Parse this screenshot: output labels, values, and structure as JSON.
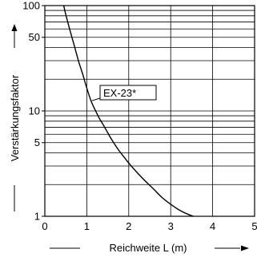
{
  "chart_data": {
    "type": "line",
    "xlabel": "Reichweite L (m)",
    "ylabel": "Verstärkungsfaktor",
    "xlim": [
      0,
      5
    ],
    "ylim": [
      1,
      100
    ],
    "yscale": "log",
    "grid": true,
    "x_ticks": [
      0,
      1,
      2,
      3,
      4,
      5
    ],
    "x_tick_labels": [
      "0",
      "1",
      "2",
      "3",
      "4",
      "5"
    ],
    "y_ticks": [
      1,
      5,
      10,
      50,
      100
    ],
    "y_tick_labels": [
      "1",
      "5",
      "10",
      "50",
      "100"
    ],
    "y_gridlines": [
      1,
      2,
      3,
      4,
      5,
      6,
      7,
      8,
      9,
      10,
      20,
      30,
      40,
      50,
      60,
      70,
      80,
      90,
      100
    ],
    "series": [
      {
        "name": "EX-23*",
        "x": [
          0.45,
          0.5,
          0.6,
          0.7,
          0.8,
          0.9,
          1.0,
          1.1,
          1.2,
          1.3,
          1.4,
          1.5,
          1.6,
          1.75,
          1.9,
          2.0,
          2.2,
          2.4,
          2.6,
          2.8,
          3.0,
          3.2,
          3.4,
          3.6
        ],
        "y": [
          100,
          82,
          58,
          42,
          30,
          22.5,
          16.5,
          12.5,
          10.2,
          8.5,
          7.3,
          6.2,
          5.3,
          4.3,
          3.6,
          3.2,
          2.6,
          2.15,
          1.8,
          1.5,
          1.3,
          1.15,
          1.05,
          0.98
        ]
      }
    ],
    "annotation": {
      "text": "EX-23*",
      "x": 1.12,
      "y": 12.5
    }
  }
}
